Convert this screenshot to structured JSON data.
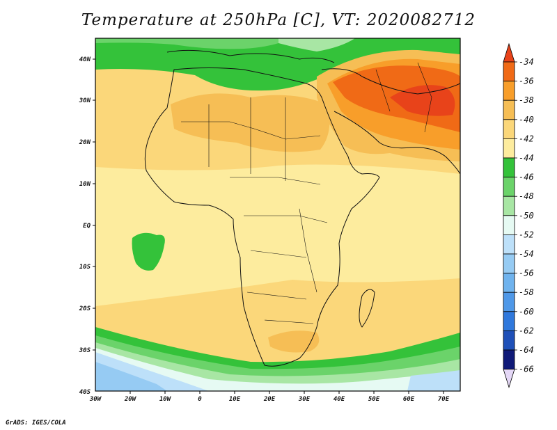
{
  "title": "Temperature at 250hPa [C], VT: 2020082712",
  "footer": "GrADS: IGES/COLA",
  "map": {
    "lat_labels": [
      "40N",
      "30N",
      "20N",
      "10N",
      "EQ",
      "10S",
      "20S",
      "30S",
      "40S"
    ],
    "lon_labels": [
      "30W",
      "20W",
      "10W",
      "0",
      "10E",
      "20E",
      "30E",
      "40E",
      "50E",
      "60E",
      "70E"
    ]
  },
  "colorbar": {
    "labels": [
      "-34",
      "-36",
      "-38",
      "-40",
      "-42",
      "-44",
      "-46",
      "-48",
      "-50",
      "-52",
      "-54",
      "-56",
      "-58",
      "-60",
      "-62",
      "-64",
      "-66"
    ],
    "colors": {
      "over": "#e8431a",
      "c_m36": "#f06a16",
      "c_m38": "#f89e2a",
      "c_m40": "#f6be55",
      "c_m42": "#fbd77a",
      "c_m44": "#fdec9e",
      "c_m46": "#34c23a",
      "c_m48": "#6bd36a",
      "c_m50": "#a8e6a4",
      "c_m52": "#e6faf3",
      "c_m54": "#bde0f9",
      "c_m56": "#96cbf3",
      "c_m58": "#6fb3ee",
      "c_m60": "#4f98e8",
      "c_m62": "#2f78dc",
      "c_m64": "#1f50b8",
      "c_m66": "#101a78",
      "under": "#e4d7f6"
    }
  }
}
